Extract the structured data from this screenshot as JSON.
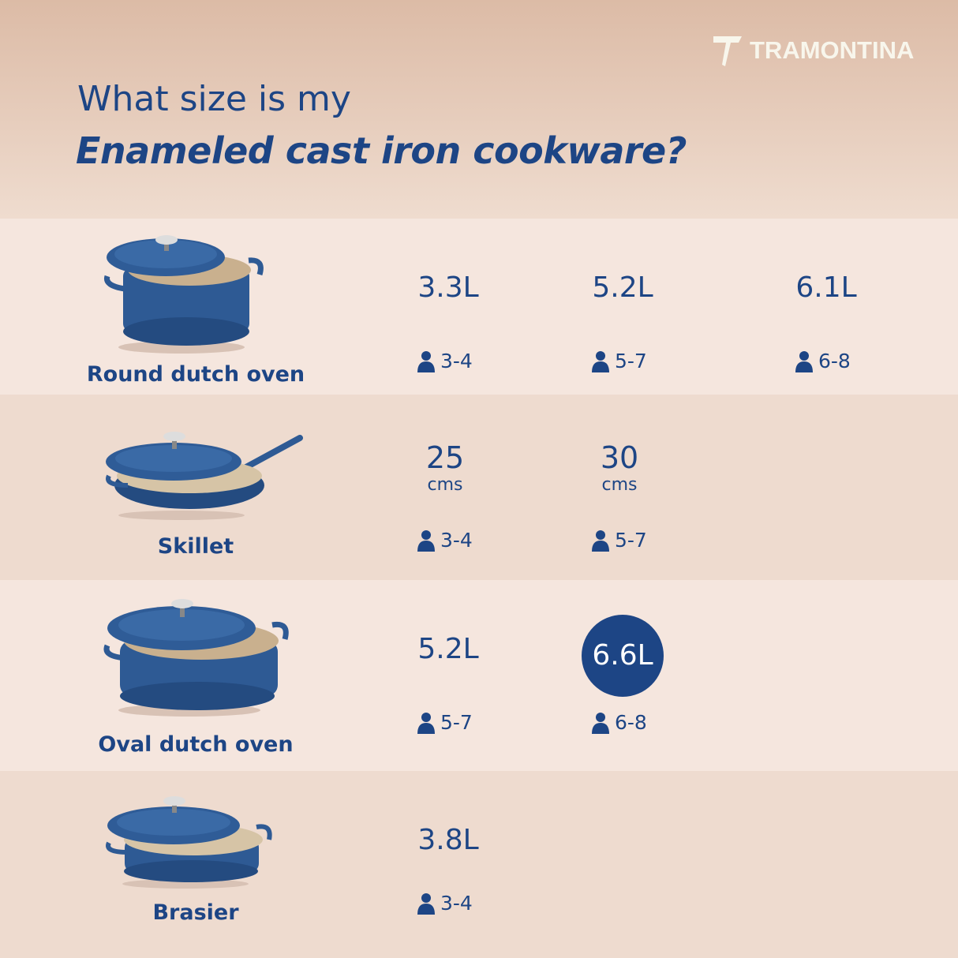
{
  "brand": {
    "logo_text": "TRAMONTINA",
    "text_color": "#1d4585"
  },
  "title": {
    "line1": "What size is my",
    "line2": "Enameled cast iron cookware?"
  },
  "rows": [
    {
      "name": "Round dutch oven",
      "sizes": [
        {
          "value": "3.3L",
          "servings": "3-4"
        },
        {
          "value": "5.2L",
          "servings": "5-7"
        },
        {
          "value": "6.1L",
          "servings": "6-8"
        }
      ]
    },
    {
      "name": "Skillet",
      "sizes": [
        {
          "value": "25",
          "unit": "cms",
          "servings": "3-4"
        },
        {
          "value": "30",
          "unit": "cms",
          "servings": "5-7"
        }
      ]
    },
    {
      "name": "Oval dutch oven",
      "sizes": [
        {
          "value": "5.2L",
          "servings": "5-7"
        },
        {
          "value": "6.6L",
          "servings": "6-8",
          "highlighted": true
        }
      ]
    },
    {
      "name": "Brasier",
      "sizes": [
        {
          "value": "3.8L",
          "servings": "3-4"
        }
      ]
    }
  ]
}
